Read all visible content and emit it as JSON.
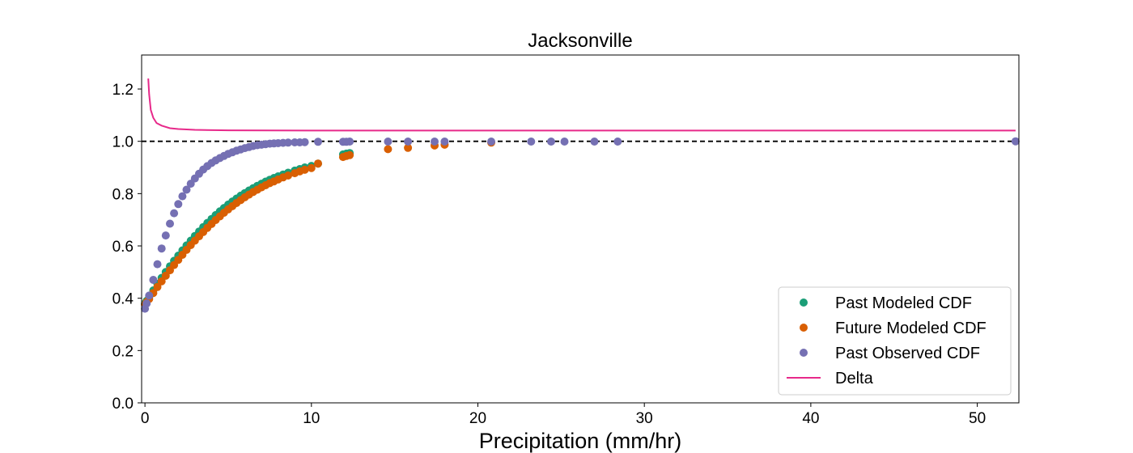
{
  "chart_data": {
    "type": "scatter",
    "title": "Jacksonville",
    "xlabel": "Precipitation (mm/hr)",
    "ylabel": "",
    "xlim": [
      -0.2,
      52.5
    ],
    "ylim": [
      0.0,
      1.33
    ],
    "x_ticks": [
      0,
      10,
      20,
      30,
      40,
      50
    ],
    "x_tick_labels": [
      "0",
      "10",
      "20",
      "30",
      "40",
      "50"
    ],
    "y_ticks": [
      0.0,
      0.2,
      0.4,
      0.6,
      0.8,
      1.0,
      1.2
    ],
    "y_tick_labels": [
      "0.0",
      "0.2",
      "0.4",
      "0.6",
      "0.8",
      "1.0",
      "1.2"
    ],
    "grid": false,
    "legend_position": "bottom-right",
    "reference_line": {
      "y": 1.0,
      "style": "dashed",
      "color": "#000000"
    },
    "series": [
      {
        "name": "Past Modeled CDF",
        "kind": "scatter",
        "color": "#1b9e77",
        "x": [
          0,
          0.1,
          0.25,
          0.5,
          0.75,
          1.0,
          1.25,
          1.5,
          1.75,
          2.0,
          2.25,
          2.5,
          2.75,
          3.0,
          3.25,
          3.5,
          3.75,
          4.0,
          4.25,
          4.5,
          4.75,
          5.0,
          5.25,
          5.5,
          5.75,
          6.0,
          6.25,
          6.5,
          6.75,
          7.0,
          7.25,
          7.5,
          7.75,
          8.0,
          8.3,
          8.6,
          9.0,
          9.3,
          9.6,
          10.0,
          10.4,
          11.9,
          12.1,
          12.3
        ],
        "y": [
          0.38,
          0.39,
          0.405,
          0.43,
          0.455,
          0.478,
          0.5,
          0.522,
          0.543,
          0.563,
          0.583,
          0.602,
          0.62,
          0.638,
          0.655,
          0.672,
          0.688,
          0.703,
          0.718,
          0.732,
          0.745,
          0.758,
          0.77,
          0.781,
          0.792,
          0.802,
          0.812,
          0.821,
          0.83,
          0.838,
          0.846,
          0.853,
          0.86,
          0.866,
          0.873,
          0.88,
          0.888,
          0.894,
          0.9,
          0.906,
          0.915,
          0.95,
          0.953,
          0.955
        ]
      },
      {
        "name": "Future Modeled CDF",
        "kind": "scatter",
        "color": "#d95f02",
        "x": [
          0,
          0.1,
          0.25,
          0.5,
          0.75,
          1.0,
          1.25,
          1.5,
          1.75,
          2.0,
          2.25,
          2.5,
          2.75,
          3.0,
          3.25,
          3.5,
          3.75,
          4.0,
          4.25,
          4.5,
          4.75,
          5.0,
          5.25,
          5.5,
          5.75,
          6.0,
          6.25,
          6.5,
          6.75,
          7.0,
          7.25,
          7.5,
          7.75,
          8.0,
          8.3,
          8.6,
          9.0,
          9.3,
          9.6,
          10.0,
          10.4,
          11.9,
          12.1,
          12.3,
          14.6,
          15.8,
          17.4,
          18.0,
          20.8
        ],
        "y": [
          0.375,
          0.385,
          0.397,
          0.42,
          0.443,
          0.465,
          0.486,
          0.507,
          0.527,
          0.547,
          0.566,
          0.585,
          0.603,
          0.62,
          0.637,
          0.653,
          0.669,
          0.684,
          0.699,
          0.713,
          0.727,
          0.74,
          0.752,
          0.764,
          0.775,
          0.786,
          0.796,
          0.806,
          0.815,
          0.824,
          0.832,
          0.84,
          0.847,
          0.854,
          0.862,
          0.869,
          0.878,
          0.885,
          0.891,
          0.898,
          0.915,
          0.94,
          0.944,
          0.947,
          0.97,
          0.975,
          0.984,
          0.987,
          0.995
        ]
      },
      {
        "name": "Past Observed CDF",
        "kind": "scatter",
        "color": "#7570b3",
        "x": [
          0,
          0.1,
          0.25,
          0.5,
          0.75,
          1.0,
          1.25,
          1.5,
          1.75,
          2.0,
          2.25,
          2.5,
          2.75,
          3.0,
          3.25,
          3.5,
          3.75,
          4.0,
          4.25,
          4.5,
          4.75,
          5.0,
          5.25,
          5.5,
          5.75,
          6.0,
          6.25,
          6.5,
          6.75,
          7.0,
          7.25,
          7.5,
          7.75,
          8.0,
          8.3,
          8.6,
          9.0,
          9.3,
          9.6,
          10.4,
          11.9,
          12.1,
          12.3,
          14.6,
          15.8,
          17.4,
          18.0,
          20.8,
          23.2,
          24.4,
          25.2,
          27.0,
          28.4,
          52.3
        ],
        "y": [
          0.36,
          0.38,
          0.41,
          0.47,
          0.53,
          0.59,
          0.64,
          0.685,
          0.725,
          0.76,
          0.79,
          0.815,
          0.838,
          0.858,
          0.876,
          0.892,
          0.905,
          0.917,
          0.927,
          0.936,
          0.944,
          0.952,
          0.958,
          0.964,
          0.969,
          0.974,
          0.978,
          0.982,
          0.985,
          0.987,
          0.989,
          0.991,
          0.992,
          0.993,
          0.994,
          0.995,
          0.996,
          0.996,
          0.997,
          0.998,
          0.998,
          0.998,
          0.999,
          0.999,
          0.999,
          0.999,
          0.999,
          0.999,
          0.999,
          0.999,
          0.999,
          0.999,
          0.999,
          1.0
        ]
      },
      {
        "name": "Delta",
        "kind": "line",
        "color": "#e7298a",
        "x": [
          0.2,
          0.25,
          0.35,
          0.5,
          0.7,
          1.0,
          1.5,
          2.0,
          3.0,
          5.0,
          10.0,
          20.0,
          52.3
        ],
        "y": [
          1.24,
          1.18,
          1.12,
          1.09,
          1.07,
          1.06,
          1.05,
          1.047,
          1.044,
          1.042,
          1.041,
          1.041,
          1.041
        ]
      }
    ]
  }
}
